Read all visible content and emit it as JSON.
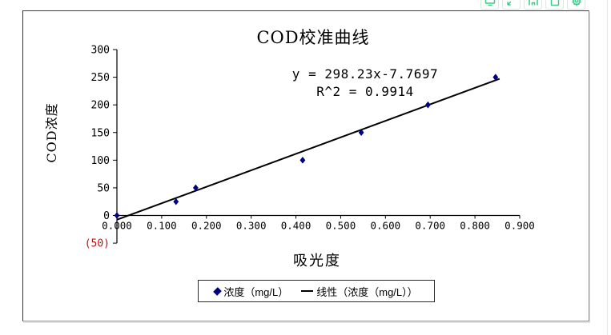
{
  "window": {
    "toolbar_icons": [
      "monitor-icon",
      "expand-arrows-icon",
      "home-icon",
      "document-icon",
      "gear-icon"
    ],
    "icon_color": "#3fcb87"
  },
  "chart_data": {
    "type": "scatter",
    "title": "COD校准曲线",
    "xlabel": "吸光度",
    "ylabel": "COD浓度",
    "annotation": {
      "equation": "y = 298.23x-7.7697",
      "r_squared": "R^2 = 0.9914"
    },
    "series": [
      {
        "name": "浓度（mg/L）",
        "marker": "diamond",
        "color": "#000080",
        "points": [
          [
            0.0,
            0
          ],
          [
            0.132,
            25
          ],
          [
            0.176,
            50
          ],
          [
            0.415,
            100
          ],
          [
            0.546,
            150
          ],
          [
            0.695,
            200
          ],
          [
            0.846,
            250
          ]
        ]
      }
    ],
    "trendline": {
      "name": "线性（浓度（mg/L））",
      "slope": 298.23,
      "intercept": -7.7697,
      "x_start": 0.0,
      "x_end": 0.855,
      "color": "#000000"
    },
    "xlim": [
      0.0,
      0.9
    ],
    "ylim": [
      -50,
      300
    ],
    "x_tick_step": 0.1,
    "y_tick_step": 50,
    "x_tick_decimals": 3,
    "negative_y_tick_label": "(50)",
    "negative_y_tick_color": "#e00000",
    "grid": false,
    "legend_position": "bottom",
    "legend": [
      {
        "marker": "diamond",
        "color": "#000080",
        "label": "浓度（mg/L）"
      },
      {
        "marker": "line",
        "color": "#000000",
        "label": "线性（浓度（mg/L））"
      }
    ]
  }
}
